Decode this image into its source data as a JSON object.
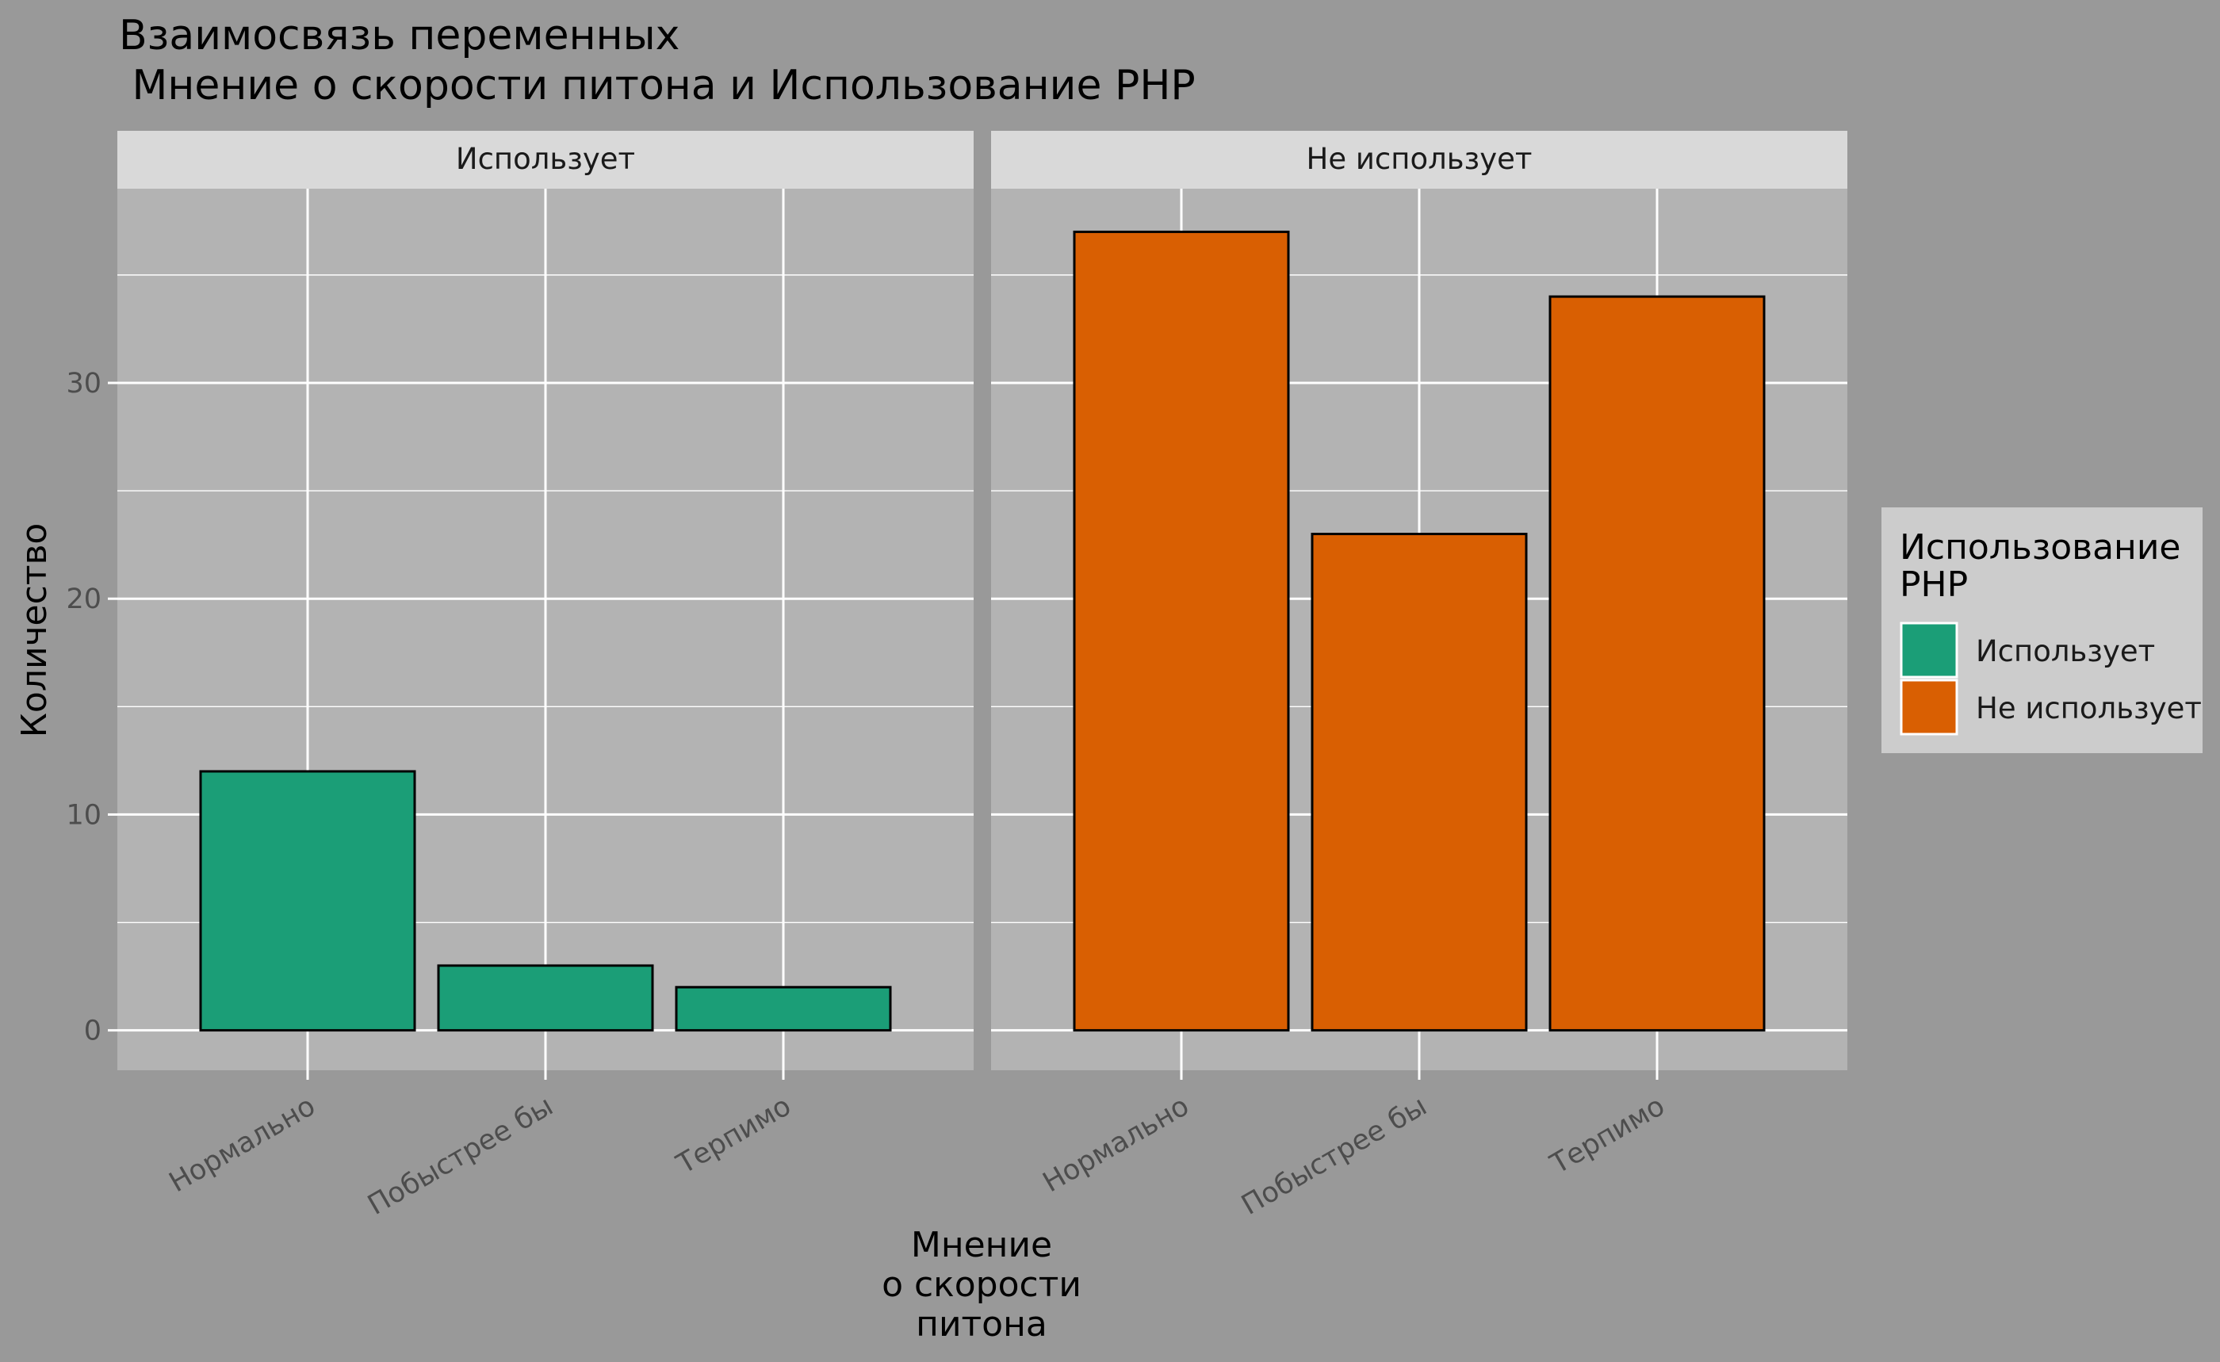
{
  "chart_data": {
    "type": "bar",
    "title": [
      "Взаимосвязь переменных",
      " Мнение о скорости питона и Использование PHP"
    ],
    "categories": [
      "Нормально",
      "Побыстрее бы",
      "Терпимо"
    ],
    "panels": [
      {
        "label": "Использует",
        "series": "Использует",
        "values": [
          12,
          3,
          2
        ]
      },
      {
        "label": "Не использует",
        "series": "Не использует",
        "values": [
          37,
          23,
          34
        ]
      }
    ],
    "xlabel": [
      "Мнение",
      "о скорости",
      "питона"
    ],
    "ylabel": "Количество",
    "ylim": [
      -1.85,
      39
    ],
    "yticks": [
      0,
      10,
      20,
      30
    ],
    "legend": {
      "title": [
        "Использование",
        "PHP"
      ],
      "position": "right",
      "entries": [
        {
          "label": "Использует",
          "color": "#1B9E77"
        },
        {
          "label": "Не использует",
          "color": "#D95F02"
        }
      ]
    },
    "grid": true,
    "colors": {
      "background": "#999999",
      "panel": "#B3B3B3",
      "strip": "#D9D9D9",
      "grid": "#FFFFFF",
      "legend_background": "#CCCCCC"
    }
  }
}
